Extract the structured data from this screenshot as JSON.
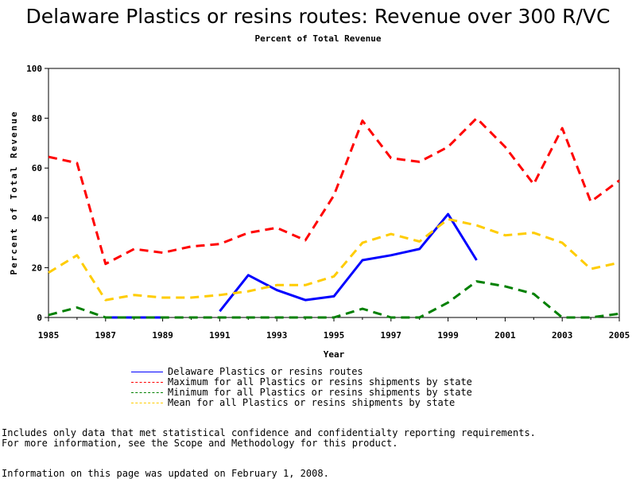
{
  "chart_data": {
    "type": "line",
    "title": "Delaware Plastics or resins routes: Revenue over 300 R/VC",
    "subtitle": "Percent of Total Revenue",
    "xlabel": "Year",
    "ylabel": "Percent of Total Revenue",
    "xlim": [
      1985,
      2005
    ],
    "ylim": [
      0,
      100
    ],
    "x_ticks": [
      "1985",
      "1987",
      "1989",
      "1991",
      "1993",
      "1995",
      "1997",
      "1999",
      "2001",
      "2003",
      "2005"
    ],
    "y_ticks": [
      "0",
      "20",
      "40",
      "60",
      "80",
      "100"
    ],
    "grid": false,
    "legend_position": "bottom",
    "series": [
      {
        "name": "Delaware Plastics or resins routes",
        "color": "#0000ff",
        "style": "solid",
        "points": [
          [
            1987,
            0
          ],
          [
            1988,
            0
          ],
          [
            1989,
            0
          ],
          [
            null,
            null
          ],
          [
            1991,
            2.5
          ],
          [
            1992,
            17
          ],
          [
            1993,
            11
          ],
          [
            1994,
            7
          ],
          [
            1995,
            8.5
          ],
          [
            1996,
            23
          ],
          [
            1997,
            25
          ],
          [
            1998,
            27.5
          ],
          [
            1999,
            41.5
          ],
          [
            2000,
            23
          ]
        ]
      },
      {
        "name": "Maximum for all Plastics or resins shipments by state",
        "color": "#ff0000",
        "style": "dashed",
        "points": [
          [
            1985,
            64.5
          ],
          [
            1986,
            62
          ],
          [
            1987,
            21.5
          ],
          [
            1988,
            27.5
          ],
          [
            1989,
            26
          ],
          [
            1990,
            28.5
          ],
          [
            1991,
            29.5
          ],
          [
            1992,
            34
          ],
          [
            1993,
            36
          ],
          [
            1994,
            31
          ],
          [
            1995,
            49
          ],
          [
            1996,
            79
          ],
          [
            1997,
            64
          ],
          [
            1998,
            62.5
          ],
          [
            1999,
            68.5
          ],
          [
            2000,
            80
          ],
          [
            2001,
            68.5
          ],
          [
            2002,
            53.5
          ],
          [
            2003,
            76
          ],
          [
            2004,
            46.5
          ],
          [
            2005,
            55
          ]
        ]
      },
      {
        "name": "Minimum for all Plastics or resins shipments by state",
        "color": "#008000",
        "style": "dashed",
        "points": [
          [
            1985,
            1
          ],
          [
            1986,
            4
          ],
          [
            1987,
            0
          ],
          [
            1988,
            0
          ],
          [
            1989,
            0
          ],
          [
            1990,
            0
          ],
          [
            1991,
            0
          ],
          [
            1992,
            0
          ],
          [
            1993,
            0
          ],
          [
            1994,
            0
          ],
          [
            1995,
            0
          ],
          [
            1996,
            3.5
          ],
          [
            1997,
            0
          ],
          [
            1998,
            0
          ],
          [
            1999,
            6
          ],
          [
            2000,
            14.5
          ],
          [
            2001,
            12.5
          ],
          [
            2002,
            9.5
          ],
          [
            2003,
            0
          ],
          [
            2004,
            0
          ],
          [
            2005,
            1.5
          ]
        ]
      },
      {
        "name": "Mean for all Plastics or resins shipments by state",
        "color": "#ffcc00",
        "style": "dashed",
        "points": [
          [
            1985,
            18
          ],
          [
            1986,
            25
          ],
          [
            1987,
            7
          ],
          [
            1988,
            9
          ],
          [
            1989,
            8
          ],
          [
            1990,
            8
          ],
          [
            1991,
            9
          ],
          [
            1992,
            10.5
          ],
          [
            1993,
            13
          ],
          [
            1994,
            13
          ],
          [
            1995,
            16.5
          ],
          [
            1996,
            30
          ],
          [
            1997,
            33.5
          ],
          [
            1998,
            30.5
          ],
          [
            1999,
            39.5
          ],
          [
            2000,
            37
          ],
          [
            2001,
            33
          ],
          [
            2002,
            34
          ],
          [
            2003,
            30
          ],
          [
            2004,
            19.5
          ],
          [
            2005,
            22
          ]
        ]
      }
    ]
  },
  "notes": {
    "line1": "Includes only data that met statistical confidence and confidentialty reporting requirements.",
    "line2": "For more information, see the Scope and Methodology for this product.",
    "line3": "Information on this page was updated on February 1, 2008."
  }
}
